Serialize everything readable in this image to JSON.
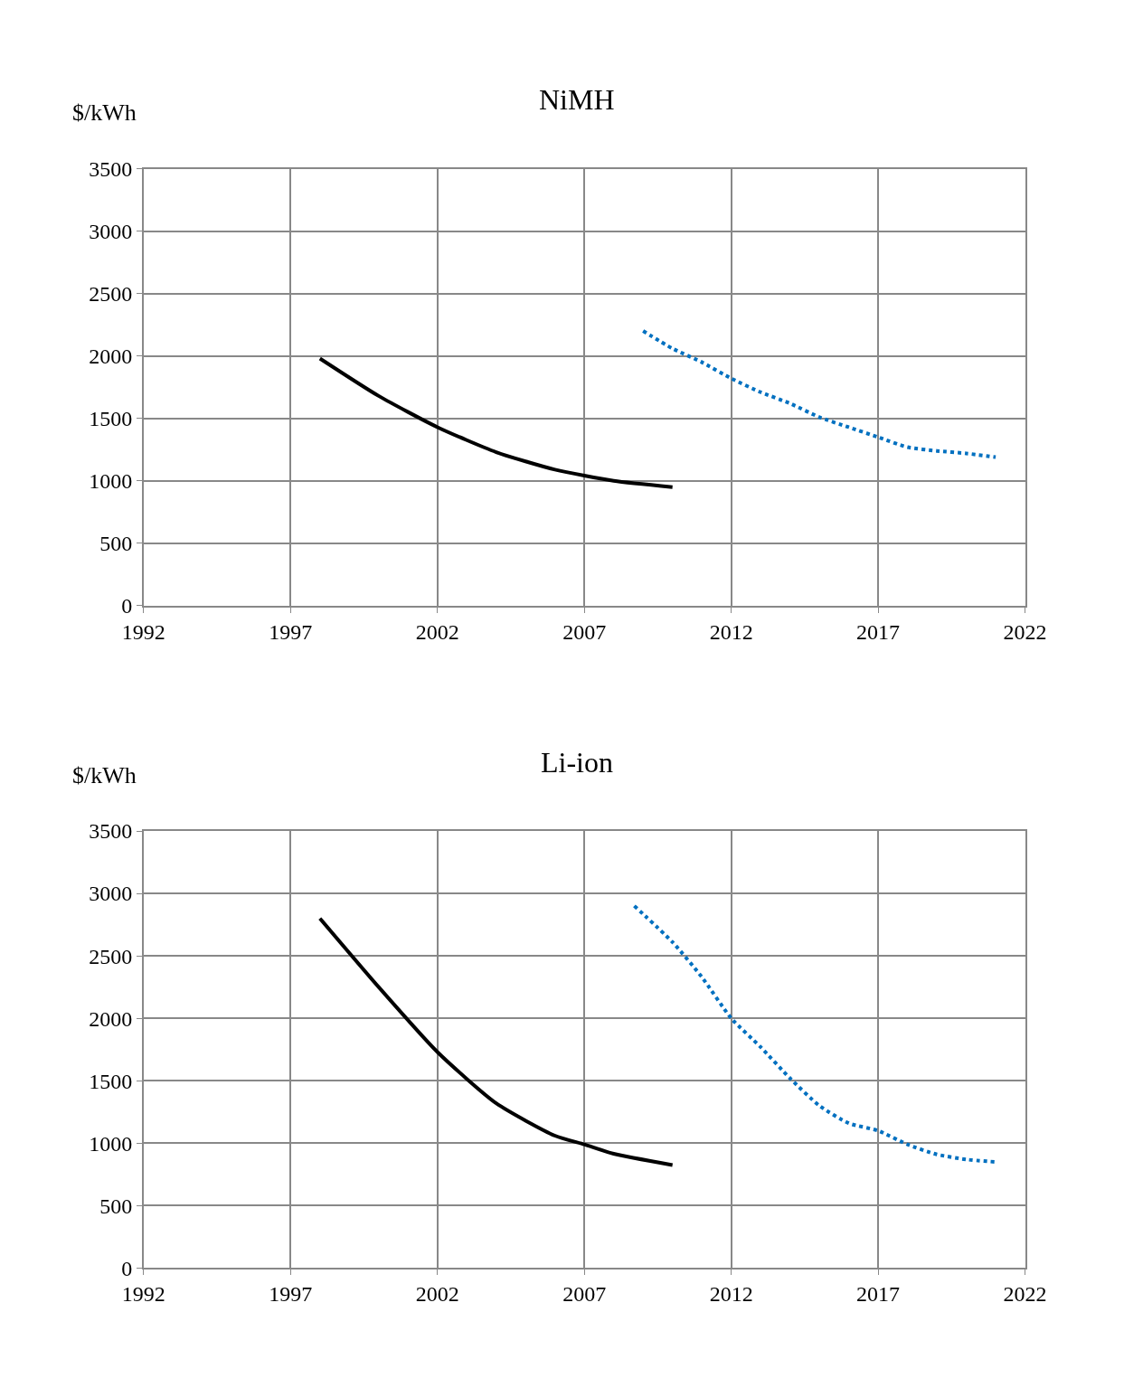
{
  "chart_data": [
    {
      "type": "line",
      "title": "NiMH",
      "ylabel": "$/kWh",
      "xlim": [
        1992,
        2022
      ],
      "xticks": [
        1992,
        1997,
        2002,
        2007,
        2012,
        2017,
        2022
      ],
      "ylim": [
        0,
        3500
      ],
      "yticks": [
        0,
        500,
        1000,
        1500,
        2000,
        2500,
        3000,
        3500
      ],
      "grid": true,
      "marker": "none",
      "series": [
        {
          "color": "#000000",
          "line_style": "solid",
          "x": [
            1998,
            2000,
            2002,
            2004,
            2006,
            2008,
            2010
          ],
          "values": [
            1980,
            1680,
            1430,
            1230,
            1090,
            1000,
            950
          ]
        },
        {
          "color": "#0070c0",
          "line_style": "dotted",
          "x": [
            2009,
            2010,
            2011,
            2012,
            2013,
            2014,
            2015,
            2016,
            2017,
            2018,
            2019,
            2020,
            2021
          ],
          "values": [
            2200,
            2060,
            1950,
            1820,
            1710,
            1620,
            1510,
            1430,
            1350,
            1270,
            1240,
            1220,
            1190
          ]
        }
      ]
    },
    {
      "type": "line",
      "title": "Li-ion",
      "ylabel": "$/kWh",
      "xlim": [
        1992,
        2022
      ],
      "xticks": [
        1992,
        1997,
        2002,
        2007,
        2012,
        2017,
        2022
      ],
      "ylim": [
        0,
        3500
      ],
      "yticks": [
        0,
        500,
        1000,
        1500,
        2000,
        2500,
        3000,
        3500
      ],
      "grid": true,
      "marker": "none",
      "series": [
        {
          "color": "#000000",
          "line_style": "solid",
          "x": [
            1998,
            2000,
            2002,
            2004,
            2006,
            2007,
            2008,
            2010
          ],
          "values": [
            2800,
            2250,
            1730,
            1320,
            1060,
            990,
            915,
            825
          ]
        },
        {
          "color": "#0070c0",
          "line_style": "dotted",
          "x": [
            2008.7,
            2010,
            2011,
            2012,
            2013,
            2014,
            2015,
            2016,
            2017,
            2018,
            2019,
            2020,
            2021
          ],
          "values": [
            2900,
            2610,
            2330,
            2000,
            1770,
            1520,
            1300,
            1160,
            1100,
            990,
            910,
            870,
            850
          ]
        }
      ]
    }
  ]
}
